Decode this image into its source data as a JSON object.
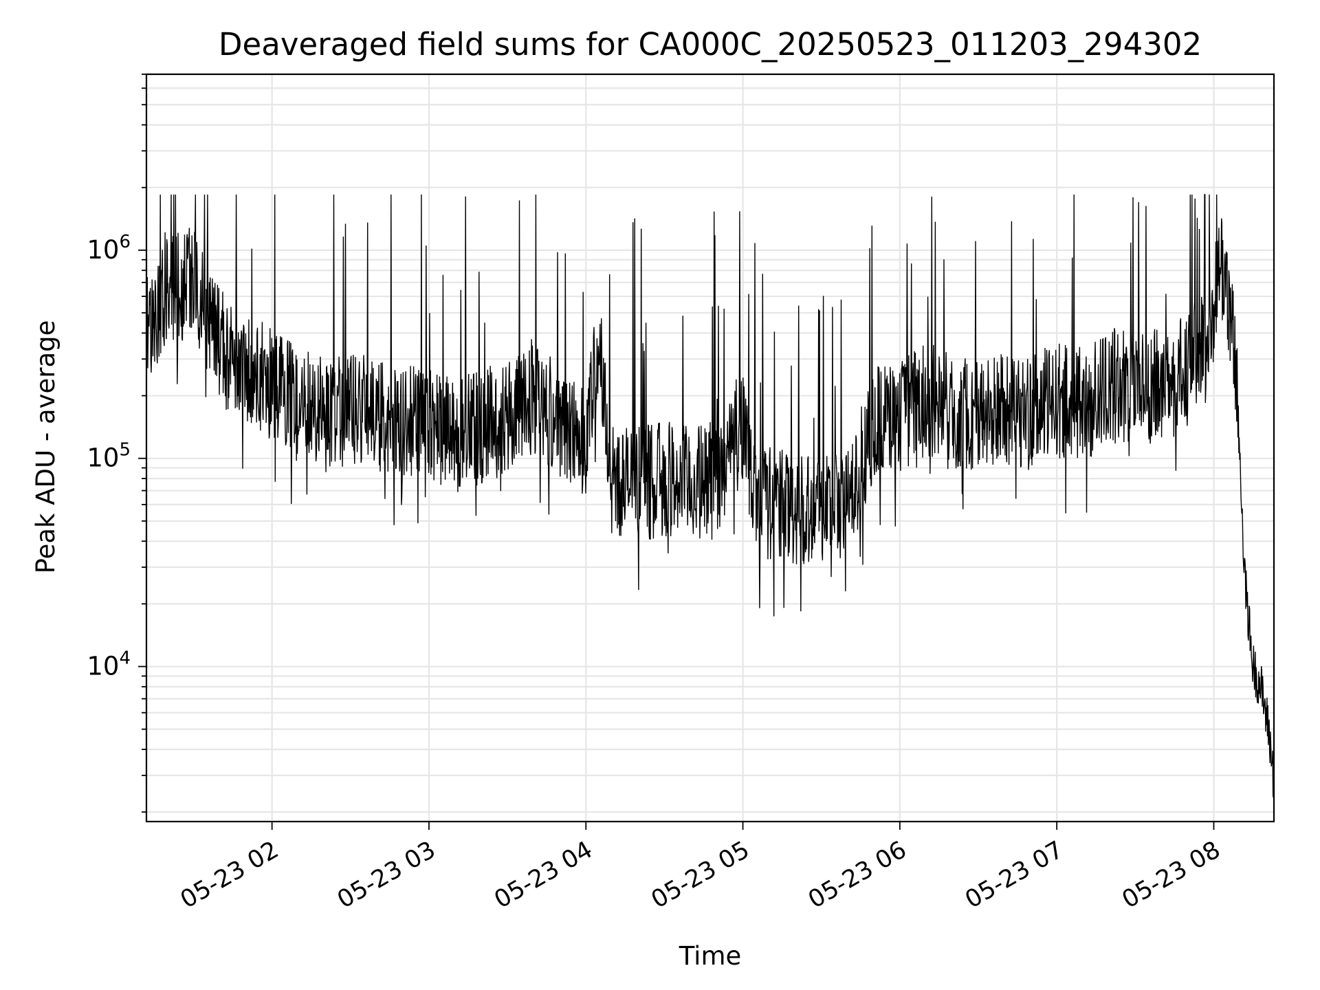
{
  "chart_data": {
    "type": "line",
    "title": "Deaveraged field sums for CA000C_20250523_011203_294302",
    "xlabel": "Time",
    "ylabel": "Peak ADU - average",
    "yscale": "log",
    "grid": true,
    "ylim": [
      1800,
      7000000
    ],
    "xlim": [
      "05-23 01:12",
      "05-23 08:23"
    ],
    "x_ticks": [
      "05-23 02",
      "05-23 03",
      "05-23 04",
      "05-23 05",
      "05-23 06",
      "05-23 07",
      "05-23 08"
    ],
    "y_ticks": [
      {
        "base": "10",
        "exp": "4",
        "value": 10000
      },
      {
        "base": "10",
        "exp": "5",
        "value": 100000
      },
      {
        "base": "10",
        "exp": "6",
        "value": 1000000
      }
    ],
    "series": [
      {
        "color": "#000000",
        "x": [
          "05-23 01:12",
          "05-23 01:20",
          "05-23 01:25",
          "05-23 01:30",
          "05-23 01:35",
          "05-23 01:40",
          "05-23 01:45",
          "05-23 01:50",
          "05-23 02:00",
          "05-23 02:10",
          "05-23 02:20",
          "05-23 02:30",
          "05-23 02:40",
          "05-23 02:50",
          "05-23 03:00",
          "05-23 03:10",
          "05-23 03:20",
          "05-23 03:30",
          "05-23 03:40",
          "05-23 03:50",
          "05-23 04:00",
          "05-23 04:05",
          "05-23 04:10",
          "05-23 04:20",
          "05-23 04:30",
          "05-23 04:40",
          "05-23 04:50",
          "05-23 05:00",
          "05-23 05:05",
          "05-23 05:10",
          "05-23 05:20",
          "05-23 05:30",
          "05-23 05:40",
          "05-23 05:50",
          "05-23 06:00",
          "05-23 06:10",
          "05-23 06:20",
          "05-23 06:30",
          "05-23 06:40",
          "05-23 06:50",
          "05-23 07:00",
          "05-23 07:10",
          "05-23 07:20",
          "05-23 07:30",
          "05-23 07:40",
          "05-23 07:50",
          "05-23 08:00",
          "05-23 08:02",
          "05-23 08:05",
          "05-23 08:08",
          "05-23 08:10",
          "05-23 08:12",
          "05-23 08:15",
          "05-23 08:18",
          "05-23 08:21",
          "05-23 08:23"
        ],
        "y": [
          400000,
          700000,
          650000,
          800000,
          500000,
          350000,
          300000,
          280000,
          220000,
          180000,
          160000,
          170000,
          160000,
          150000,
          140000,
          130000,
          140000,
          160000,
          200000,
          150000,
          120000,
          350000,
          80000,
          75000,
          80000,
          75000,
          80000,
          150000,
          65000,
          60000,
          58000,
          60000,
          58000,
          150000,
          160000,
          190000,
          170000,
          160000,
          170000,
          165000,
          190000,
          180000,
          220000,
          230000,
          220000,
          260000,
          500000,
          900000,
          700000,
          300000,
          100000,
          25000,
          10000,
          8000,
          5000,
          2800
        ]
      }
    ]
  }
}
